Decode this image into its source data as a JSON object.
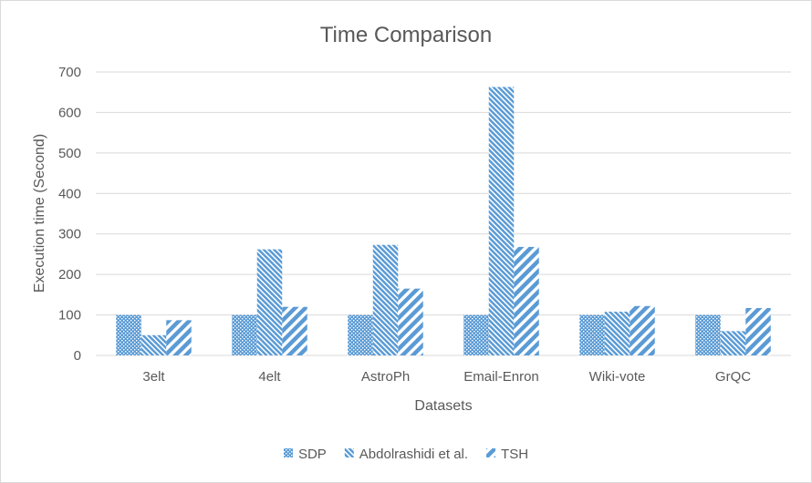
{
  "chart_data": {
    "type": "bar",
    "title": "Time Comparison",
    "xlabel": "Datasets",
    "ylabel": "Execution time (Second)",
    "categories": [
      "3elt",
      "4elt",
      "AstroPh",
      "Email-Enron",
      "Wiki-vote",
      "GrQC"
    ],
    "series": [
      {
        "name": "SDP",
        "values": [
          100,
          100,
          100,
          100,
          100,
          100
        ],
        "pattern": "dots"
      },
      {
        "name": "Abdolrashidi et al.",
        "values": [
          50,
          262,
          273,
          663,
          108,
          60
        ],
        "pattern": "dense-diagonal"
      },
      {
        "name": "TSH",
        "values": [
          87,
          120,
          165,
          268,
          122,
          117
        ],
        "pattern": "wide-diagonal"
      }
    ],
    "ylim": [
      0,
      700
    ],
    "yticks": [
      0,
      100,
      200,
      300,
      400,
      500,
      600,
      700
    ],
    "grid": true,
    "legend": "bottom",
    "colors": {
      "bar": "#5b9bd5",
      "grid": "#d9d9d9",
      "text": "#595959"
    }
  }
}
